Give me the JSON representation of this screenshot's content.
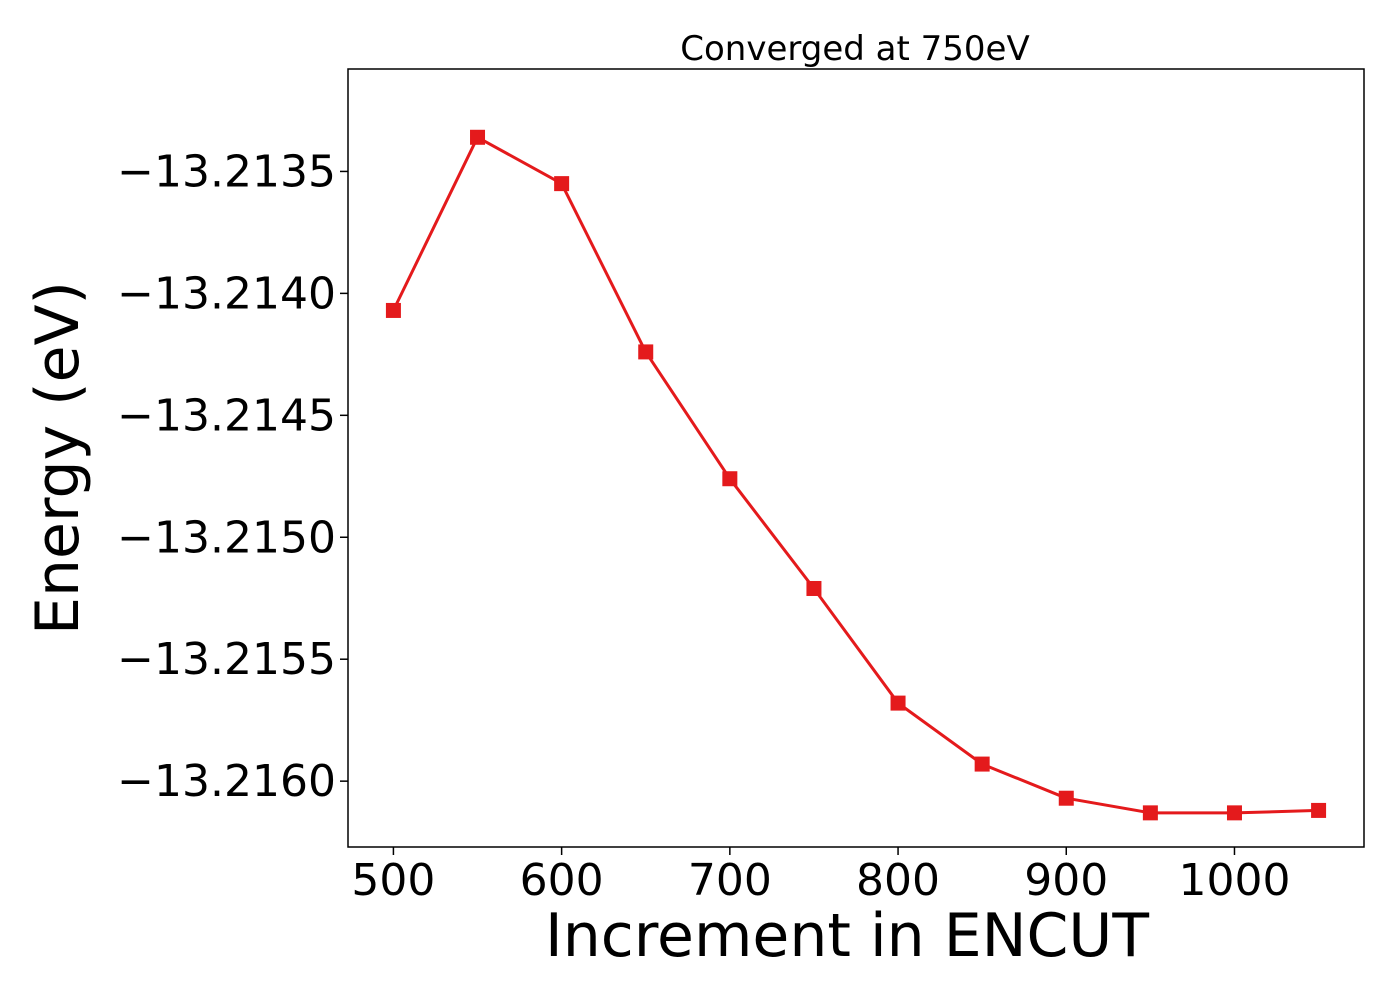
{
  "chart_data": {
    "type": "line",
    "title": "Converged at 750eV",
    "xlabel": "Increment in ENCUT",
    "ylabel": "Energy (eV)",
    "x": [
      500,
      550,
      600,
      650,
      700,
      750,
      800,
      850,
      900,
      950,
      1000,
      1050
    ],
    "series": [
      {
        "values": [
          -13.21407,
          -13.21336,
          -13.21355,
          -13.21424,
          -13.21476,
          -13.21521,
          -13.21568,
          -13.21593,
          -13.21607,
          -13.21613,
          -13.21613,
          -13.21612
        ],
        "color": "#e41a1c",
        "marker": "square"
      }
    ],
    "xlim": [
      473,
      1077
    ],
    "ylim": [
      -13.21627,
      -13.21308
    ],
    "xticks": [
      500,
      600,
      700,
      800,
      900,
      1000
    ],
    "xtick_labels": [
      "500",
      "600",
      "700",
      "800",
      "900",
      "1000"
    ],
    "yticks": [
      -13.2135,
      -13.214,
      -13.2145,
      -13.215,
      -13.2155,
      -13.216
    ],
    "ytick_labels": [
      "−13.2135",
      "−13.2140",
      "−13.2145",
      "−13.2150",
      "−13.2155",
      "−13.2160"
    ],
    "grid": false,
    "legend": "none"
  }
}
